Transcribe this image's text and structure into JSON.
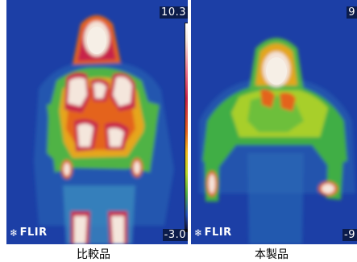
{
  "panels": {
    "left": {
      "temp_max": "10.3",
      "temp_min": "-3.0",
      "logo_text": "FLIR",
      "caption": "比較品"
    },
    "right": {
      "temp_max": "9",
      "temp_min": "-9",
      "logo_text": "FLIR",
      "caption": "本製品"
    }
  },
  "colors": {
    "background_cold": "#1c3fa6",
    "warm_green": "#3fae44",
    "hot_red": "#c8204a",
    "hottest": "#f6efe6"
  },
  "icons": [
    "flir-logo-mark-icon"
  ]
}
